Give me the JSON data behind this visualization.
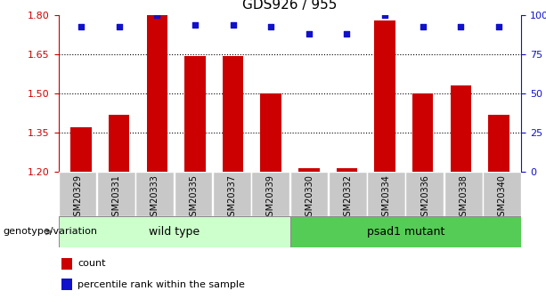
{
  "title": "GDS926 / 955",
  "categories": [
    "GSM20329",
    "GSM20331",
    "GSM20333",
    "GSM20335",
    "GSM20337",
    "GSM20339",
    "GSM20330",
    "GSM20332",
    "GSM20334",
    "GSM20336",
    "GSM20338",
    "GSM20340"
  ],
  "bar_values": [
    1.37,
    1.42,
    1.8,
    1.645,
    1.643,
    1.5,
    1.215,
    1.215,
    1.78,
    1.5,
    1.53,
    1.42
  ],
  "percentile_y_left": [
    1.755,
    1.755,
    1.8,
    1.765,
    1.765,
    1.755,
    1.73,
    1.73,
    1.8,
    1.755,
    1.755,
    1.755
  ],
  "ylim": [
    1.2,
    1.8
  ],
  "yticks_left": [
    1.2,
    1.35,
    1.5,
    1.65,
    1.8
  ],
  "yticks_right": [
    0,
    25,
    50,
    75,
    100
  ],
  "bar_color": "#cc0000",
  "dot_color": "#1111cc",
  "wild_type_color": "#ccffcc",
  "mutant_color": "#55cc55",
  "label_bg_color": "#c8c8c8",
  "wild_type_label": "wild type",
  "mutant_label": "psad1 mutant",
  "group_label": "genotype/variation",
  "legend_count": "count",
  "legend_percentile": "percentile rank within the sample",
  "n_wild": 6,
  "n_mutant": 6,
  "bar_width": 0.55,
  "dotted_line_levels": [
    1.35,
    1.5,
    1.65
  ]
}
